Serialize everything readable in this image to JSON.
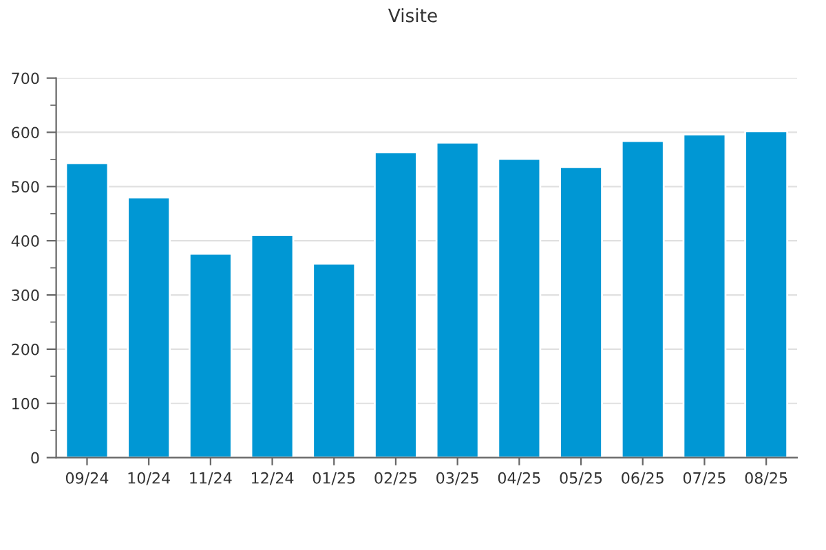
{
  "chart_data": {
    "type": "bar",
    "title": "Visite",
    "categories": [
      "09/24",
      "10/24",
      "11/24",
      "12/24",
      "01/25",
      "02/25",
      "03/25",
      "04/25",
      "05/25",
      "06/25",
      "07/25",
      "08/25"
    ],
    "values": [
      543,
      480,
      376,
      411,
      358,
      563,
      581,
      551,
      536,
      584,
      596,
      602
    ],
    "color": "#0097d4",
    "ylim": [
      0,
      700
    ],
    "yticks": [
      0,
      {
        "value": 50,
        "label": null
      },
      100,
      {
        "value": 150,
        "label": null
      },
      200,
      {
        "value": 250,
        "label": null
      },
      300,
      {
        "value": 350,
        "label": null
      },
      400,
      {
        "value": 450,
        "label": null
      },
      500,
      {
        "value": 550,
        "label": null
      },
      600,
      {
        "value": 650,
        "label": null
      },
      700
    ],
    "grid": "y",
    "legend": false
  }
}
